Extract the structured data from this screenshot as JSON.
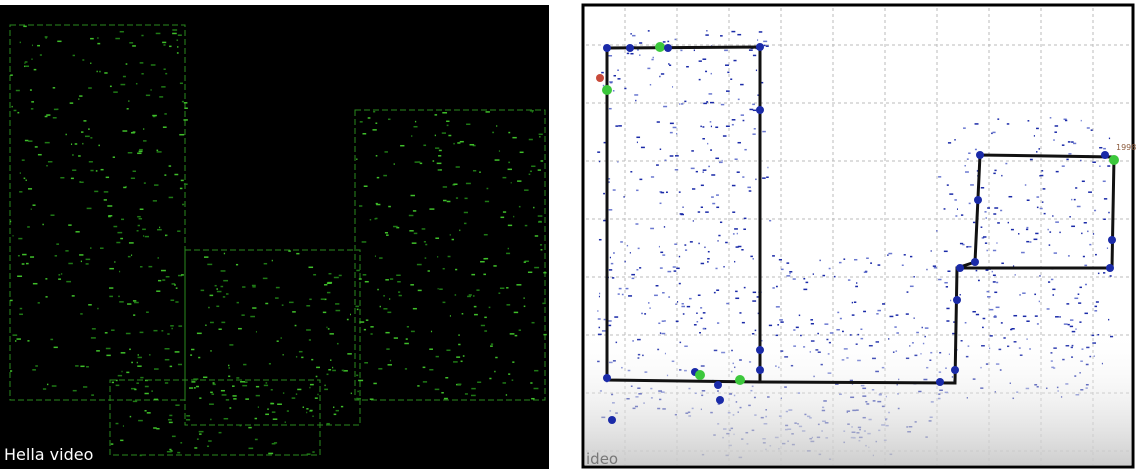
{
  "left": {
    "caption": "Hella video"
  },
  "right": {
    "caption": "ideo",
    "point_label": "1998"
  }
}
